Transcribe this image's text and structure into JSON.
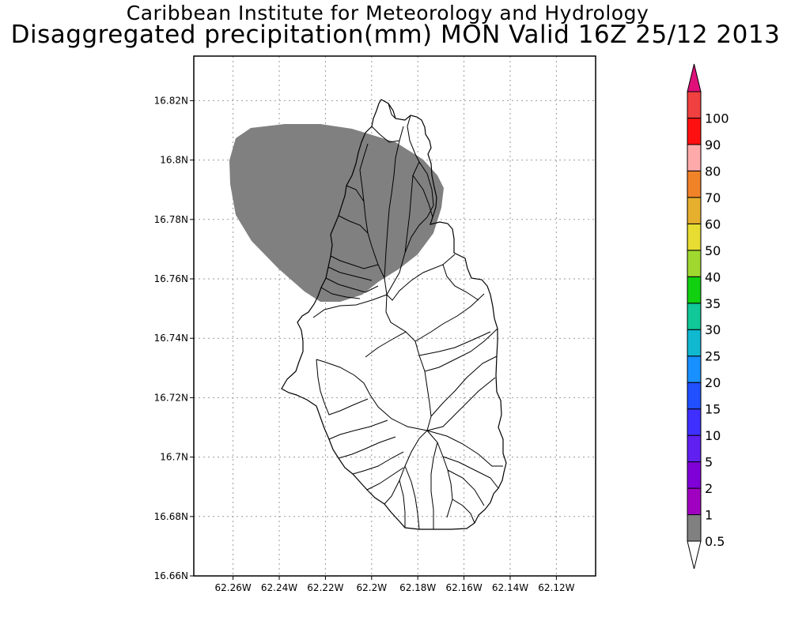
{
  "titles": {
    "line1": "Caribbean Institute for Meteorology and Hydrology",
    "line2": "Disaggregated precipitation(mm) MON Valid 16Z 25/12 2013"
  },
  "map": {
    "lat_range": [
      16.66,
      16.835
    ],
    "lon_range": [
      -62.277,
      -62.103
    ],
    "lat_ticks": [
      {
        "value": 16.82,
        "label": "16.82N"
      },
      {
        "value": 16.8,
        "label": "16.8N"
      },
      {
        "value": 16.78,
        "label": "16.78N"
      },
      {
        "value": 16.76,
        "label": "16.76N"
      },
      {
        "value": 16.74,
        "label": "16.74N"
      },
      {
        "value": 16.72,
        "label": "16.72N"
      },
      {
        "value": 16.7,
        "label": "16.7N"
      },
      {
        "value": 16.68,
        "label": "16.68N"
      },
      {
        "value": 16.66,
        "label": "16.66N"
      }
    ],
    "lon_ticks": [
      {
        "value": -62.26,
        "label": "62.26W"
      },
      {
        "value": -62.24,
        "label": "62.24W"
      },
      {
        "value": -62.22,
        "label": "62.22W"
      },
      {
        "value": -62.2,
        "label": "62.2W"
      },
      {
        "value": -62.18,
        "label": "62.18W"
      },
      {
        "value": -62.16,
        "label": "62.16W"
      },
      {
        "value": -62.14,
        "label": "62.14W"
      },
      {
        "value": -62.12,
        "label": "62.12W"
      }
    ],
    "grid": true,
    "shaded_region": {
      "category": "0.5-1 mm",
      "color": "#808080"
    },
    "land_outline_color": "#000000"
  },
  "colorbar": {
    "levels": [
      "0.5",
      "1",
      "2",
      "5",
      "10",
      "15",
      "20",
      "25",
      "30",
      "35",
      "40",
      "50",
      "60",
      "70",
      "80",
      "90",
      "100"
    ],
    "colors": [
      "#808080",
      "#a000c0",
      "#8000d8",
      "#6020f0",
      "#4030ff",
      "#2050ff",
      "#1890ff",
      "#10b8d0",
      "#10c898",
      "#10d010",
      "#a0d830",
      "#e6dc32",
      "#e6af2d",
      "#f08228",
      "#ffaaaa",
      "#ff1010",
      "#f04040"
    ],
    "under_color": "#ffffff",
    "over_color": "#e0107a"
  }
}
